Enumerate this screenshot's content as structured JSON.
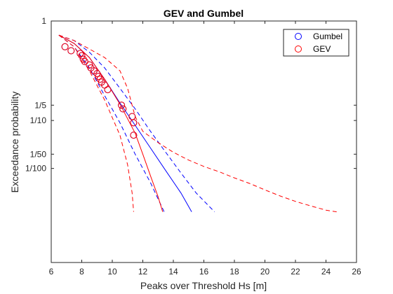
{
  "chart_data": {
    "type": "line",
    "title": "GEV and Gumbel",
    "xlabel": "Peaks over Threshold Hs [m]",
    "ylabel": "Exceedance probability",
    "xlim": [
      6,
      26
    ],
    "x_ticks": [
      6,
      8,
      10,
      12,
      14,
      16,
      18,
      20,
      22,
      24,
      26
    ],
    "y_scale": "log(-log(1-p))",
    "ylim": [
      1.0,
      0.0001
    ],
    "y_ticks": [
      {
        "value": 1.0,
        "label": "1"
      },
      {
        "value": 0.2,
        "label": "1/5"
      },
      {
        "value": 0.1,
        "label": "1/10"
      },
      {
        "value": 0.02,
        "label": "1/50"
      },
      {
        "value": 0.01,
        "label": "1/100"
      }
    ],
    "grid": false,
    "legend_position": "top-right",
    "legend": [
      {
        "label": "Gumbel",
        "color": "#0000ff",
        "marker": "circle"
      },
      {
        "label": "GEV",
        "color": "#ff0000",
        "marker": "circle"
      }
    ],
    "series": [
      {
        "kind": "markers",
        "color": "#0000ff",
        "points": [
          [
            6.9,
            0.98
          ],
          [
            7.3,
            0.96
          ],
          [
            7.9,
            0.94
          ],
          [
            8.0,
            0.92
          ],
          [
            8.1,
            0.88
          ],
          [
            8.2,
            0.85
          ],
          [
            8.5,
            0.8
          ],
          [
            8.6,
            0.75
          ],
          [
            8.8,
            0.7
          ],
          [
            9.0,
            0.65
          ],
          [
            9.1,
            0.6
          ],
          [
            9.2,
            0.55
          ],
          [
            9.3,
            0.5
          ],
          [
            9.5,
            0.45
          ],
          [
            9.7,
            0.38
          ],
          [
            10.6,
            0.2
          ],
          [
            10.7,
            0.17
          ],
          [
            11.3,
            0.12
          ],
          [
            11.4,
            0.09
          ],
          [
            11.4,
            0.05
          ]
        ]
      },
      {
        "kind": "markers",
        "color": "#ff0000",
        "points": [
          [
            6.9,
            0.98
          ],
          [
            7.3,
            0.96
          ],
          [
            7.9,
            0.94
          ],
          [
            8.0,
            0.92
          ],
          [
            8.1,
            0.88
          ],
          [
            8.2,
            0.85
          ],
          [
            8.5,
            0.8
          ],
          [
            8.6,
            0.75
          ],
          [
            8.8,
            0.7
          ],
          [
            9.0,
            0.65
          ],
          [
            9.1,
            0.6
          ],
          [
            9.2,
            0.55
          ],
          [
            9.3,
            0.5
          ],
          [
            9.5,
            0.45
          ],
          [
            9.7,
            0.38
          ],
          [
            10.6,
            0.2
          ],
          [
            10.7,
            0.17
          ],
          [
            11.3,
            0.12
          ],
          [
            11.4,
            0.09
          ],
          [
            11.4,
            0.05
          ]
        ]
      },
      {
        "kind": "line",
        "name": "Gumbel fit",
        "color": "#0000ff",
        "dash": "solid",
        "points": [
          [
            6.5,
            0.999
          ],
          [
            7.5,
            0.99
          ],
          [
            8.5,
            0.9
          ],
          [
            9.5,
            0.55
          ],
          [
            10.5,
            0.22
          ],
          [
            11.5,
            0.08
          ],
          [
            12.5,
            0.027
          ],
          [
            13.5,
            0.009
          ],
          [
            14.5,
            0.003
          ],
          [
            15.2,
            0.0012
          ]
        ]
      },
      {
        "kind": "line",
        "name": "Gumbel lower bound",
        "color": "#0000ff",
        "dash": "dashed",
        "points": [
          [
            6.5,
            0.999
          ],
          [
            7.5,
            0.98
          ],
          [
            8.5,
            0.75
          ],
          [
            9.5,
            0.3
          ],
          [
            10.5,
            0.09
          ],
          [
            11.5,
            0.02
          ],
          [
            12.5,
            0.005
          ],
          [
            13.4,
            0.0012
          ]
        ]
      },
      {
        "kind": "line",
        "name": "Gumbel upper bound",
        "color": "#0000ff",
        "dash": "dashed",
        "points": [
          [
            6.5,
            0.999
          ],
          [
            7.5,
            0.995
          ],
          [
            8.5,
            0.95
          ],
          [
            9.5,
            0.75
          ],
          [
            10.5,
            0.4
          ],
          [
            11.5,
            0.17
          ],
          [
            12.5,
            0.06
          ],
          [
            13.5,
            0.022
          ],
          [
            14.5,
            0.008
          ],
          [
            15.5,
            0.003
          ],
          [
            16.7,
            0.0012
          ]
        ]
      },
      {
        "kind": "line",
        "name": "GEV fit",
        "color": "#ff0000",
        "dash": "solid",
        "points": [
          [
            6.5,
            0.999
          ],
          [
            7.5,
            0.99
          ],
          [
            8.5,
            0.9
          ],
          [
            9.5,
            0.55
          ],
          [
            10.5,
            0.21
          ],
          [
            11.5,
            0.055
          ],
          [
            12.0,
            0.02
          ],
          [
            12.5,
            0.007
          ],
          [
            13.0,
            0.0025
          ],
          [
            13.3,
            0.0012
          ]
        ]
      },
      {
        "kind": "line",
        "name": "GEV lower bound",
        "color": "#ff0000",
        "dash": "dashed",
        "points": [
          [
            6.5,
            0.999
          ],
          [
            7.5,
            0.98
          ],
          [
            8.5,
            0.7
          ],
          [
            9.5,
            0.25
          ],
          [
            10.5,
            0.05
          ],
          [
            11.0,
            0.012
          ],
          [
            11.3,
            0.003
          ],
          [
            11.4,
            0.0012
          ]
        ]
      },
      {
        "kind": "line",
        "name": "GEV upper bound",
        "color": "#ff0000",
        "dash": "dashed",
        "points": [
          [
            6.5,
            0.999
          ],
          [
            7.5,
            0.995
          ],
          [
            8.5,
            0.97
          ],
          [
            9.5,
            0.9
          ],
          [
            10.5,
            0.7
          ],
          [
            11.0,
            0.4
          ],
          [
            11.5,
            0.12
          ],
          [
            12.0,
            0.06
          ],
          [
            13.0,
            0.035
          ],
          [
            14.0,
            0.022
          ],
          [
            15.0,
            0.015
          ],
          [
            16.0,
            0.011
          ],
          [
            17.0,
            0.0085
          ],
          [
            18.0,
            0.0063
          ],
          [
            19.0,
            0.0048
          ],
          [
            20.0,
            0.0035
          ],
          [
            21.0,
            0.0026
          ],
          [
            22.0,
            0.002
          ],
          [
            23.0,
            0.0016
          ],
          [
            24.0,
            0.0013
          ],
          [
            24.7,
            0.0012
          ]
        ]
      }
    ]
  }
}
